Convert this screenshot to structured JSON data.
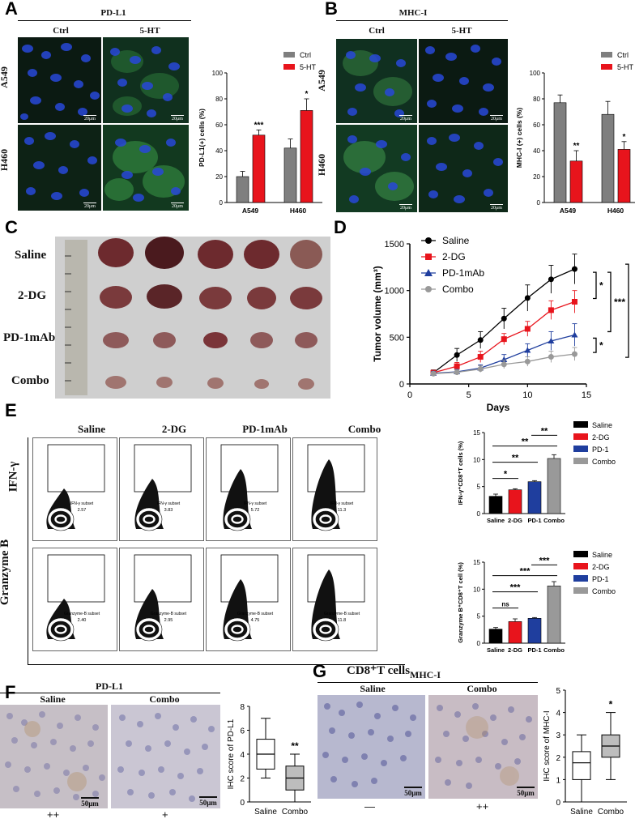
{
  "panels": {
    "A": {
      "letter": "A",
      "title": "PD-L1",
      "columns": [
        "Ctrl",
        "5-HT"
      ],
      "rows": [
        "A549",
        "H460"
      ],
      "scale_label": "20μm",
      "chart_data": {
        "type": "bar",
        "categories": [
          "A549",
          "H460"
        ],
        "series": [
          {
            "name": "Ctrl",
            "values": [
              20,
              42
            ],
            "errors": [
              4,
              7
            ],
            "color": "#7f7f7f"
          },
          {
            "name": "5-HT",
            "values": [
              52,
              71
            ],
            "errors": [
              4,
              9
            ],
            "color": "#e8141c"
          }
        ],
        "ylabel": "PD-L1(+) cells (%)",
        "ylim": [
          0,
          100
        ],
        "yticks": [
          0,
          20,
          40,
          60,
          80,
          100
        ],
        "significance": [
          "***",
          "*"
        ],
        "legend": "top-right"
      }
    },
    "B": {
      "letter": "B",
      "title": "MHC-I",
      "columns": [
        "Ctrl",
        "5-HT"
      ],
      "rows": [
        "A549",
        "H460"
      ],
      "scale_label": "20μm",
      "chart_data": {
        "type": "bar",
        "categories": [
          "A549",
          "H460"
        ],
        "series": [
          {
            "name": "Ctrl",
            "values": [
              77,
              68
            ],
            "errors": [
              6,
              10
            ],
            "color": "#7f7f7f"
          },
          {
            "name": "5-HT",
            "values": [
              32,
              41
            ],
            "errors": [
              8,
              6
            ],
            "color": "#e8141c"
          }
        ],
        "ylabel": "MHC-I (+) cells (%)",
        "ylim": [
          0,
          100
        ],
        "yticks": [
          0,
          20,
          40,
          60,
          80,
          100
        ],
        "significance": [
          "**",
          "*"
        ],
        "legend": "top-right"
      }
    },
    "C": {
      "letter": "C",
      "rows": [
        "Saline",
        "2-DG",
        "PD-1mAb",
        "Combo"
      ]
    },
    "D": {
      "letter": "D",
      "chart_data": {
        "type": "line",
        "x": [
          2,
          4,
          6,
          8,
          10,
          12,
          14
        ],
        "series": [
          {
            "name": "Saline",
            "values": [
              120,
              310,
              470,
              700,
              920,
              1120,
              1230
            ],
            "errors": [
              30,
              70,
              90,
              110,
              140,
              150,
              160
            ],
            "color": "#000000",
            "marker": "circle"
          },
          {
            "name": "2-DG",
            "values": [
              120,
              190,
              290,
              480,
              590,
              790,
              880
            ],
            "errors": [
              25,
              40,
              60,
              60,
              80,
              100,
              120
            ],
            "color": "#e8141c",
            "marker": "square"
          },
          {
            "name": "PD-1mAb",
            "values": [
              115,
              130,
              170,
              260,
              360,
              460,
              525
            ],
            "errors": [
              20,
              25,
              35,
              55,
              70,
              100,
              120
            ],
            "color": "#1f3e9e",
            "marker": "triangle"
          },
          {
            "name": "Combo",
            "values": [
              110,
              125,
              160,
              210,
              240,
              290,
              320
            ],
            "errors": [
              20,
              25,
              35,
              45,
              50,
              60,
              70
            ],
            "color": "#999999",
            "marker": "circle"
          }
        ],
        "ylabel": "Tumor volume (mm³)",
        "xlabel": "Days",
        "xlim": [
          0,
          15
        ],
        "ylim": [
          0,
          1500
        ],
        "xticks": [
          0,
          5,
          10,
          15
        ],
        "yticks": [
          0,
          500,
          1000,
          1500
        ],
        "significance": [
          "*",
          "*",
          "***",
          "***"
        ],
        "legend": "top-left"
      }
    },
    "E": {
      "letter": "E",
      "columns": [
        "Saline",
        "2-DG",
        "PD-1mAb",
        "Combo"
      ],
      "rows": [
        "IFN-γ",
        "Granzyme B"
      ],
      "x_axis_label": "CD8⁺T cells",
      "gates": {
        "ifn": {
          "label": "IFN-γ subset",
          "values": [
            "2.57",
            "3.83",
            "5.72",
            "11.3"
          ]
        },
        "gzmb": {
          "label": "Granzyme-B subset",
          "values": [
            "2.40",
            "2.95",
            "4.75",
            "11.8"
          ]
        }
      },
      "chart_ifn": {
        "type": "bar",
        "categories": [
          "Saline",
          "2-DG",
          "PD-1",
          "Combo"
        ],
        "values": [
          3.2,
          4.4,
          5.9,
          10.2
        ],
        "errors": [
          0.4,
          0.2,
          0.2,
          0.7
        ],
        "colors": [
          "#000000",
          "#e8141c",
          "#1f3e9e",
          "#999999"
        ],
        "ylabel": "IFN-γ⁺CD8⁺T cells (%)",
        "ylim": [
          0,
          15
        ],
        "yticks": [
          0,
          5,
          10,
          15
        ],
        "significance": [
          {
            "from": 0,
            "to": 1,
            "label": "*"
          },
          {
            "from": 0,
            "to": 2,
            "label": "**"
          },
          {
            "from": 0,
            "to": 3,
            "label": "**"
          },
          {
            "from": 2,
            "to": 3,
            "label": "**"
          }
        ],
        "legend": [
          "Saline",
          "2-DG",
          "PD-1",
          "Combo"
        ]
      },
      "chart_gzmb": {
        "type": "bar",
        "categories": [
          "Saline",
          "2-DG",
          "PD-1",
          "Combo"
        ],
        "values": [
          2.6,
          4.0,
          4.6,
          10.6
        ],
        "errors": [
          0.3,
          0.5,
          0.15,
          0.8
        ],
        "colors": [
          "#000000",
          "#e8141c",
          "#1f3e9e",
          "#999999"
        ],
        "ylabel": "Granzyme B⁺CD8⁺T cell (%)",
        "ylim": [
          0,
          15
        ],
        "yticks": [
          0,
          5,
          10,
          15
        ],
        "significance": [
          {
            "from": 0,
            "to": 1,
            "label": "ns"
          },
          {
            "from": 0,
            "to": 2,
            "label": "***"
          },
          {
            "from": 0,
            "to": 3,
            "label": "***"
          },
          {
            "from": 2,
            "to": 3,
            "label": "***"
          }
        ],
        "legend": [
          "Saline",
          "2-DG",
          "PD-1",
          "Combo"
        ]
      }
    },
    "F": {
      "letter": "F",
      "title": "PD-L1",
      "columns": [
        "Saline",
        "Combo"
      ],
      "grades": [
        "++",
        "+"
      ],
      "scale_label": "50μm",
      "chart_data": {
        "type": "box",
        "categories": [
          "Saline",
          "Combo"
        ],
        "boxes": [
          {
            "min": 2,
            "q1": 2.75,
            "median": 4,
            "q3": 5.25,
            "max": 7
          },
          {
            "min": 0,
            "q1": 1,
            "median": 2,
            "q3": 3,
            "max": 4
          }
        ],
        "ylabel": "IHC score of PD-L1",
        "ylim": [
          0,
          8
        ],
        "yticks": [
          0,
          2,
          4,
          6,
          8
        ],
        "significance": "**"
      }
    },
    "G": {
      "letter": "G",
      "title": "MHC-I",
      "columns": [
        "Saline",
        "Combo"
      ],
      "grades": [
        "—",
        "++"
      ],
      "scale_label": "50μm",
      "chart_data": {
        "type": "box",
        "categories": [
          "Saline",
          "Combo"
        ],
        "boxes": [
          {
            "min": 0,
            "q1": 1,
            "median": 1.75,
            "q3": 2.25,
            "max": 3
          },
          {
            "min": 1,
            "q1": 2,
            "median": 2.5,
            "q3": 3,
            "max": 4
          }
        ],
        "ylabel": "IHC score of MHC-I",
        "ylim": [
          0,
          5
        ],
        "yticks": [
          0,
          1,
          2,
          3,
          4,
          5
        ],
        "significance": "*"
      }
    }
  }
}
